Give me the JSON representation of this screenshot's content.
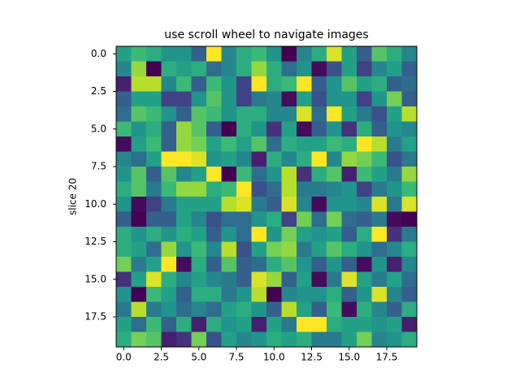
{
  "chart_data": {
    "type": "heatmap",
    "title": "use scroll wheel to navigate images",
    "y_label": "slice 20",
    "colormap": "viridis",
    "xlim": [
      -0.5,
      19.5
    ],
    "ylim": [
      19.5,
      -0.5
    ],
    "xticks": [
      {
        "value": 0,
        "label": "0.0"
      },
      2.5,
      {
        "value": 5,
        "label": "5.0"
      },
      7.5,
      {
        "value": 10,
        "label": "10.0"
      },
      12.5,
      {
        "value": 15,
        "label": "15.0"
      },
      17.5
    ],
    "yticks": [
      {
        "value": 0,
        "label": "0.0"
      },
      2.5,
      {
        "value": 5,
        "label": "5.0"
      },
      7.5,
      {
        "value": 10,
        "label": "10.0"
      },
      12.5,
      {
        "value": 15,
        "label": "15.0"
      },
      17.5
    ],
    "values": [
      [
        0.55,
        0.65,
        0.6,
        0.5,
        0.5,
        0.3,
        0.95,
        0.45,
        0.6,
        0.65,
        0.5,
        0.02,
        0.45,
        0.6,
        0.9,
        0.55,
        0.3,
        0.7,
        0.6,
        0.45
      ],
      [
        0.45,
        0.8,
        0.02,
        0.6,
        0.55,
        0.6,
        0.35,
        0.45,
        0.6,
        0.8,
        0.6,
        0.35,
        0.5,
        0.05,
        0.25,
        0.55,
        0.2,
        0.45,
        0.55,
        0.3
      ],
      [
        0.1,
        0.85,
        0.85,
        0.45,
        0.65,
        0.3,
        0.65,
        0.5,
        0.2,
        0.95,
        0.6,
        0.65,
        0.95,
        0.3,
        0.5,
        0.7,
        0.55,
        0.6,
        0.3,
        0.35
      ],
      [
        0.3,
        0.55,
        0.55,
        0.2,
        0.2,
        0.5,
        0.7,
        0.5,
        0.2,
        0.4,
        0.45,
        0.05,
        0.55,
        0.25,
        0.5,
        0.5,
        0.2,
        0.5,
        0.75,
        0.3
      ],
      [
        0.35,
        0.7,
        0.65,
        0.5,
        0.3,
        0.7,
        0.65,
        0.5,
        0.6,
        0.6,
        0.45,
        0.45,
        0.9,
        0.35,
        0.95,
        0.55,
        0.4,
        0.25,
        0.55,
        0.85
      ],
      [
        0.65,
        0.5,
        0.6,
        0.3,
        0.8,
        0.7,
        0.3,
        0.02,
        0.6,
        0.5,
        0.15,
        0.55,
        0.05,
        0.3,
        0.5,
        0.15,
        0.6,
        0.3,
        0.5,
        0.45
      ],
      [
        0.05,
        0.55,
        0.65,
        0.3,
        0.8,
        0.75,
        0.55,
        0.65,
        0.55,
        0.7,
        0.35,
        0.6,
        0.55,
        0.55,
        0.65,
        0.6,
        0.95,
        0.85,
        0.4,
        0.55
      ],
      [
        0.45,
        0.35,
        0.55,
        0.95,
        0.95,
        0.9,
        0.5,
        0.55,
        0.45,
        0.1,
        0.6,
        0.45,
        0.6,
        0.95,
        0.45,
        0.8,
        0.75,
        0.65,
        0.25,
        0.4
      ],
      [
        0.5,
        0.7,
        0.3,
        0.7,
        0.45,
        0.55,
        0.95,
        0.02,
        0.65,
        0.35,
        0.5,
        0.85,
        0.15,
        0.6,
        0.7,
        0.1,
        0.65,
        0.55,
        0.4,
        0.8
      ],
      [
        0.6,
        0.7,
        0.4,
        0.65,
        0.8,
        0.8,
        0.6,
        0.65,
        0.95,
        0.25,
        0.35,
        0.85,
        0.4,
        0.4,
        0.45,
        0.5,
        0.2,
        0.4,
        0.5,
        0.65
      ],
      [
        0.5,
        0.05,
        0.2,
        0.4,
        0.55,
        0.55,
        0.55,
        0.85,
        0.9,
        0.4,
        0.3,
        0.9,
        0.45,
        0.05,
        0.5,
        0.5,
        0.45,
        0.9,
        0.4,
        0.9
      ],
      [
        0.3,
        0.02,
        0.3,
        0.3,
        0.55,
        0.45,
        0.25,
        0.35,
        0.35,
        0.5,
        0.6,
        0.2,
        0.75,
        0.35,
        0.75,
        0.35,
        0.3,
        0.4,
        0.05,
        0.02
      ],
      [
        0.6,
        0.5,
        0.6,
        0.5,
        0.6,
        0.55,
        0.3,
        0.5,
        0.35,
        0.95,
        0.5,
        0.75,
        0.55,
        0.5,
        0.55,
        0.3,
        0.6,
        0.95,
        0.15,
        0.4
      ],
      [
        0.6,
        0.55,
        0.35,
        0.8,
        0.5,
        0.65,
        0.45,
        0.85,
        0.25,
        0.55,
        0.75,
        0.8,
        0.4,
        0.55,
        0.7,
        0.6,
        0.5,
        0.35,
        0.45,
        0.6
      ],
      [
        0.75,
        0.4,
        0.55,
        0.95,
        0.05,
        0.6,
        0.3,
        0.7,
        0.3,
        0.35,
        0.6,
        0.7,
        0.5,
        0.3,
        0.5,
        0.3,
        0.05,
        0.5,
        0.1,
        0.45
      ],
      [
        0.15,
        0.55,
        0.9,
        0.6,
        0.45,
        0.55,
        0.45,
        0.4,
        0.3,
        0.9,
        0.8,
        0.3,
        0.55,
        0.05,
        0.4,
        0.9,
        0.55,
        0.4,
        0.55,
        0.35
      ],
      [
        0.5,
        0.02,
        0.65,
        0.55,
        0.3,
        0.6,
        0.6,
        0.4,
        0.5,
        0.85,
        0.02,
        0.45,
        0.5,
        0.5,
        0.6,
        0.3,
        0.5,
        0.9,
        0.45,
        0.3
      ],
      [
        0.4,
        0.85,
        0.4,
        0.5,
        0.35,
        0.45,
        0.35,
        0.55,
        0.6,
        0.5,
        0.3,
        0.85,
        0.55,
        0.3,
        0.65,
        0.05,
        0.6,
        0.45,
        0.3,
        0.6
      ],
      [
        0.55,
        0.35,
        0.65,
        0.3,
        0.6,
        0.1,
        0.6,
        0.5,
        0.55,
        0.1,
        0.55,
        0.4,
        0.95,
        0.95,
        0.6,
        0.55,
        0.55,
        0.5,
        0.55,
        0.1
      ],
      [
        0.6,
        0.75,
        0.7,
        0.1,
        0.15,
        0.75,
        0.25,
        0.55,
        0.45,
        0.5,
        0.6,
        0.55,
        0.6,
        0.4,
        0.4,
        0.55,
        0.75,
        0.45,
        0.5,
        0.6
      ]
    ]
  }
}
